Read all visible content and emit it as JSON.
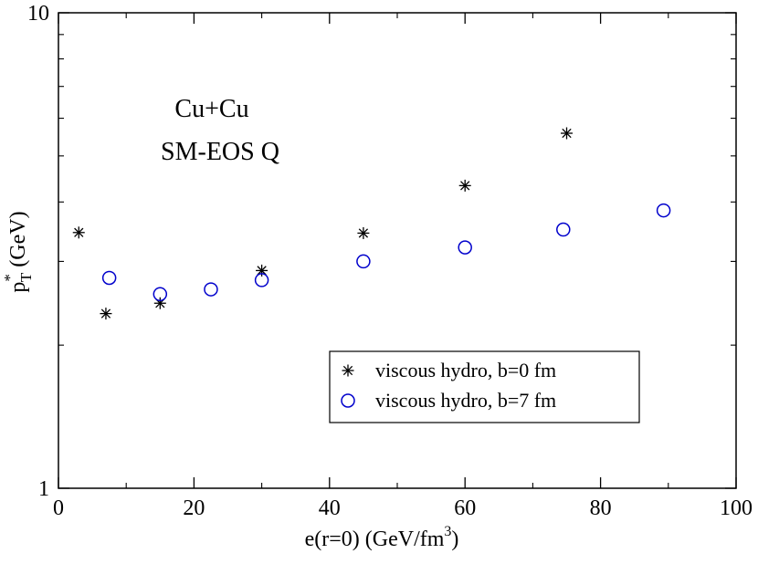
{
  "chart_data": {
    "type": "scatter",
    "title": "",
    "annotations": [
      "Cu+Cu",
      "SM-EOS Q"
    ],
    "xlabel": {
      "main": "e(r=0) (GeV/fm",
      "sup": "3",
      "tail": ")"
    },
    "ylabel": {
      "main": "p",
      "sup": "*",
      "sub": "T",
      "tail": " (GeV)"
    },
    "xlim": [
      0,
      100
    ],
    "ylim": [
      1,
      10
    ],
    "yscale": "log",
    "x_ticks": [
      0,
      20,
      40,
      60,
      80,
      100
    ],
    "x_tick_labels": [
      "0",
      "20",
      "40",
      "60",
      "80",
      "100"
    ],
    "y_ticks": [
      1,
      10
    ],
    "y_tick_labels": [
      "1",
      "10"
    ],
    "grid": false,
    "legend_position": "bottom-right",
    "series": [
      {
        "name": "viscous hydro, b=0 fm",
        "marker": "asterisk",
        "color": "#000000",
        "x": [
          3,
          7,
          15,
          30,
          45,
          60,
          75
        ],
        "y": [
          3.45,
          2.33,
          2.45,
          2.87,
          3.44,
          4.33,
          5.58
        ]
      },
      {
        "name": "viscous hydro, b=7 fm",
        "marker": "circle",
        "color": "#0000cc",
        "x": [
          7.5,
          15,
          22.5,
          30,
          45,
          60,
          74.5,
          89.3
        ],
        "y": [
          2.77,
          2.56,
          2.62,
          2.74,
          3.0,
          3.21,
          3.5,
          3.84
        ]
      }
    ]
  }
}
